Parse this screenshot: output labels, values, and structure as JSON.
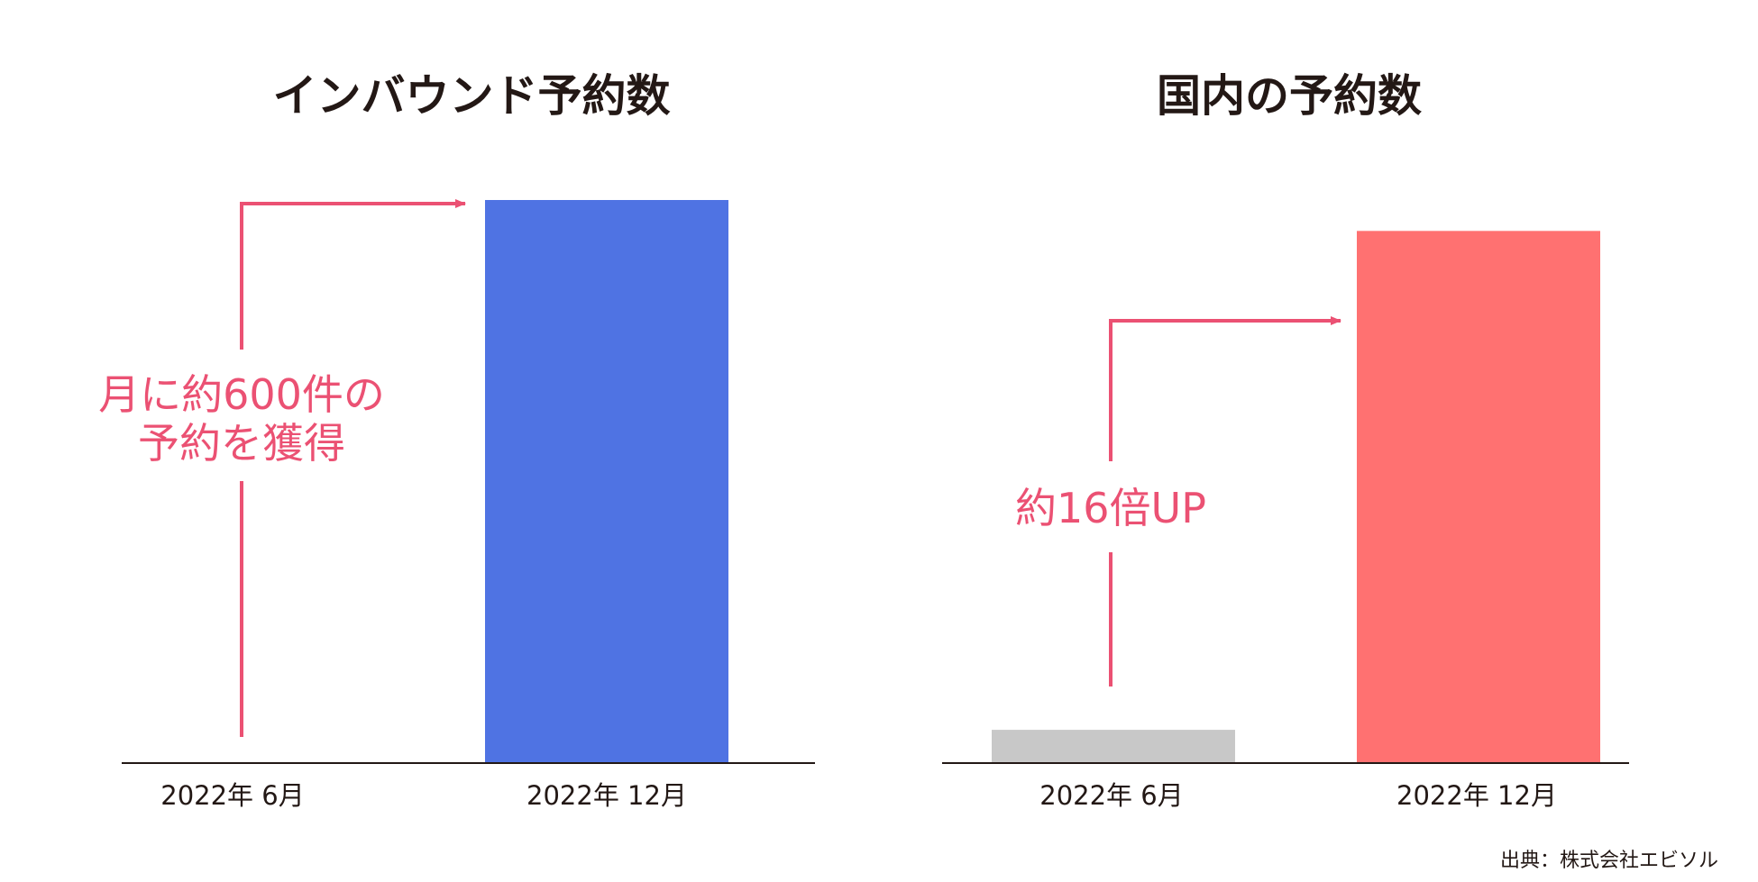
{
  "source": "出典：株式会社エビソル",
  "colors": {
    "annotation": "#eb5173",
    "axis": "#231815",
    "text": "#231815"
  },
  "chart_data": [
    {
      "type": "bar",
      "title": "インバウンド予約数",
      "categories": [
        "2022年 6月",
        "2022年 12月"
      ],
      "values": [
        0,
        600
      ],
      "bar_colors": [
        "#d2d2d2",
        "#4f73e3"
      ],
      "ylim": [
        0,
        600
      ],
      "grid": false,
      "annotation": [
        "月に約600件の",
        "予約を獲得"
      ]
    },
    {
      "type": "bar",
      "title": "国内の予約数",
      "categories": [
        "2022年 6月",
        "2022年 12月"
      ],
      "values": [
        1,
        16
      ],
      "bar_colors": [
        "#c8c8c8",
        "#ff7171"
      ],
      "ylim": [
        0,
        16.93
      ],
      "grid": false,
      "annotation": [
        "約16倍UP"
      ]
    }
  ]
}
